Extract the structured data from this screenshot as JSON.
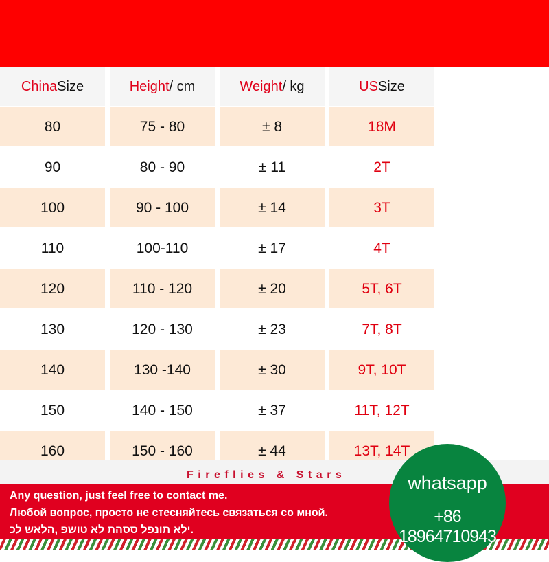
{
  "header": {
    "cols": [
      {
        "red": "China",
        "rest": " Size"
      },
      {
        "red": "Height",
        "rest": " / cm"
      },
      {
        "red": "Weight",
        "rest": " / kg"
      },
      {
        "red": "US",
        "rest": " Size"
      }
    ]
  },
  "rows": [
    [
      "80",
      "75 - 80",
      "± 8",
      "18M"
    ],
    [
      "90",
      "80 - 90",
      "± 11",
      "2T"
    ],
    [
      "100",
      "90 - 100",
      "± 14",
      "3T"
    ],
    [
      "110",
      "100-110",
      "± 17",
      "4T"
    ],
    [
      "120",
      "110 - 120",
      "± 20",
      "5T, 6T"
    ],
    [
      "130",
      "120 - 130",
      "± 23",
      "7T, 8T"
    ],
    [
      "140",
      "130 -140",
      "± 30",
      "9T, 10T"
    ],
    [
      "150",
      "140 - 150",
      "± 37",
      "11T, 12T"
    ],
    [
      "160",
      "150 - 160",
      "± 44",
      "13T, 14T"
    ]
  ],
  "brand": "Fireflies & Stars",
  "messages": [
    "Any question, just feel free to contact me.",
    "Любой вопрос, просто не стесняйтесь связаться со мной.",
    "ילא תונפל ססהת לא טושפ ,הלאש לכ."
  ],
  "whatsapp": {
    "label": "whatsapp",
    "phone": "+86 18964710943"
  },
  "colors": {
    "red": "#fe0000",
    "peach": "#fde9d6",
    "green": "#08843f"
  }
}
